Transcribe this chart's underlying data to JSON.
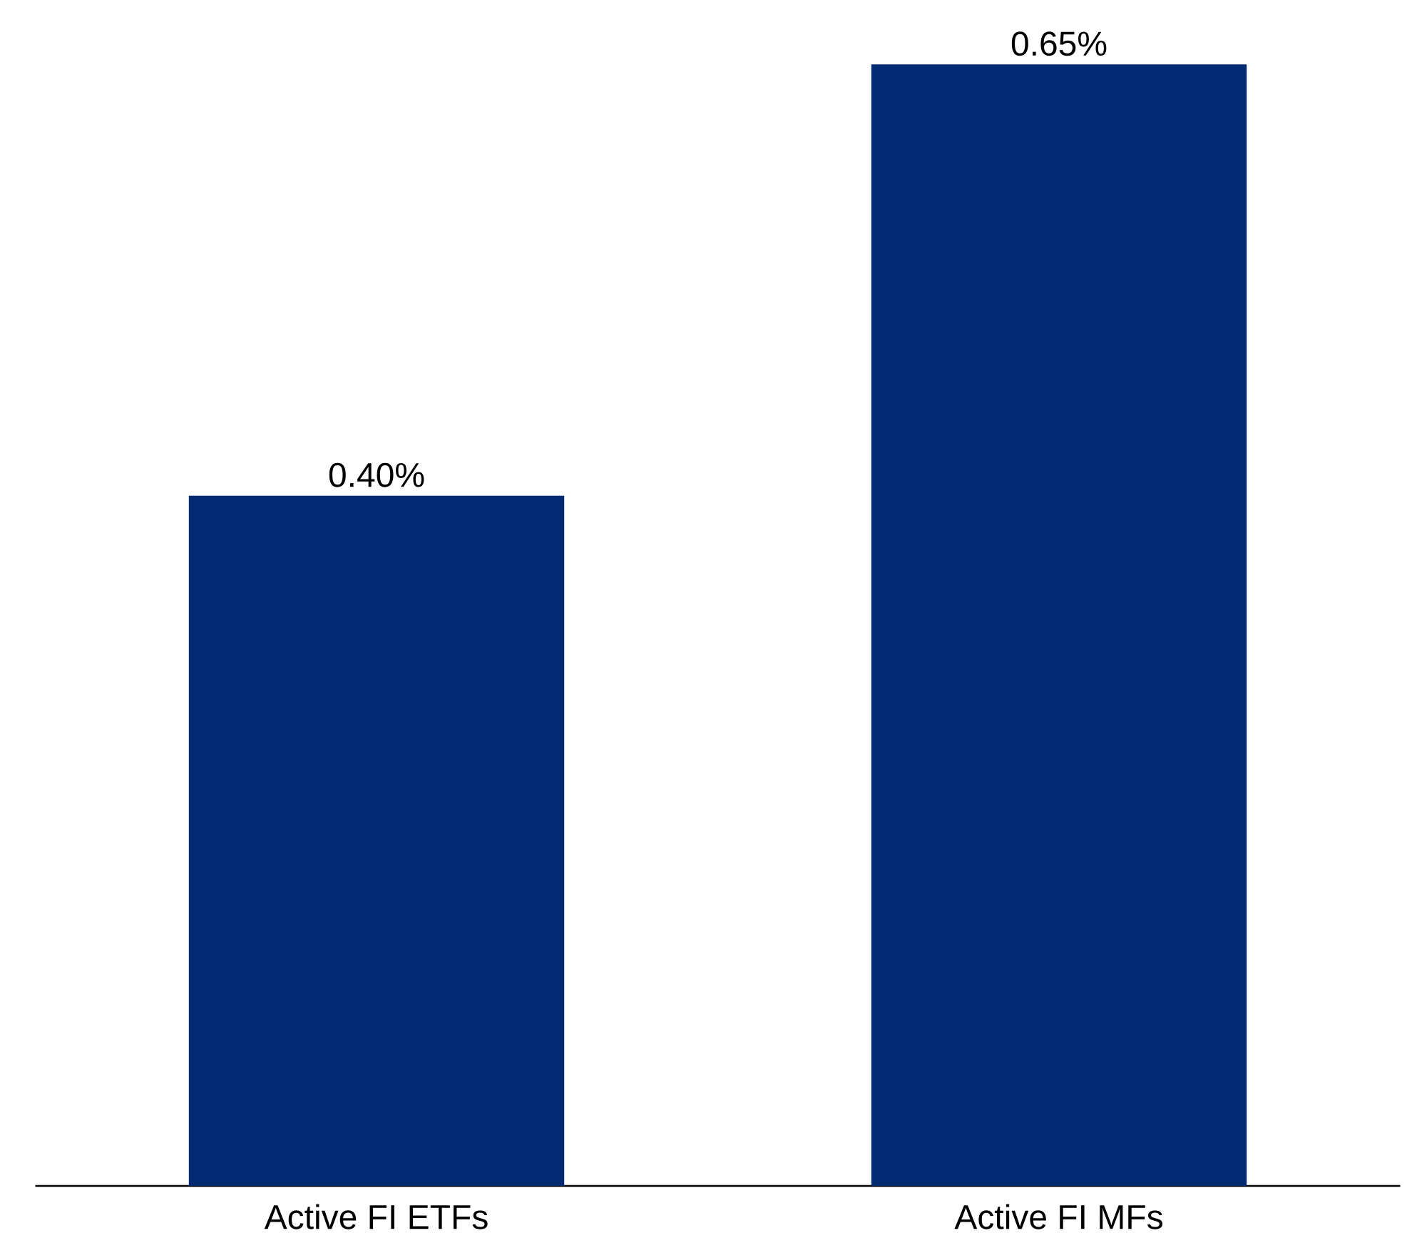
{
  "chart_data": {
    "type": "bar",
    "categories": [
      "Active FI ETFs",
      "Active FI MFs"
    ],
    "values": [
      0.4,
      0.65
    ],
    "value_labels": [
      "0.40%",
      "0.65%"
    ],
    "color": "#002b73",
    "tick_labels": "x"
  }
}
